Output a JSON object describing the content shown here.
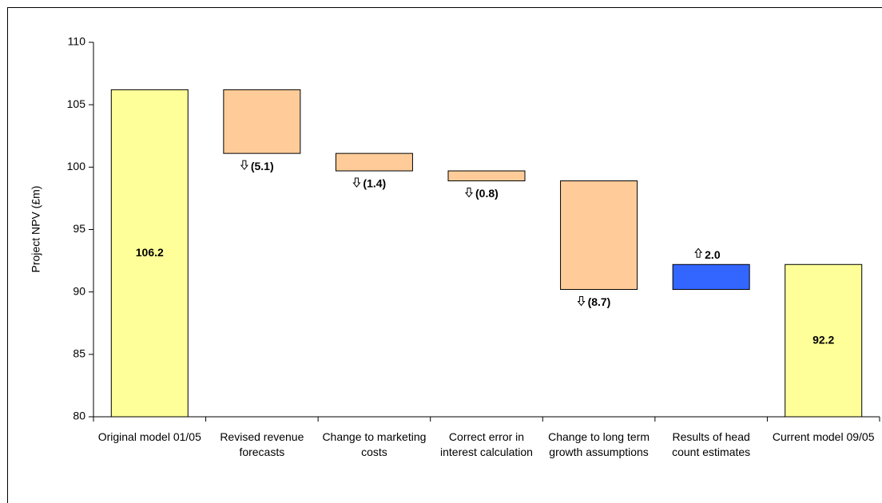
{
  "chart_data": {
    "type": "waterfall",
    "y_label": "Project NPV (£m)",
    "categories": [
      "Original model 01/05",
      "Revised revenue forecasts",
      "Change to marketing costs",
      "Correct error in interest calculation",
      "Change to long term growth assumptions",
      "Results of head count estimates",
      "Current model 09/05"
    ],
    "values": [
      106.2,
      -5.1,
      -1.4,
      -0.8,
      -8.7,
      2.0,
      92.2
    ],
    "value_labels": [
      "106.2",
      "(5.1)",
      "(1.4)",
      "(0.8)",
      "(8.7)",
      "2.0",
      "92.2"
    ],
    "measures": [
      "total",
      "relative",
      "relative",
      "relative",
      "relative",
      "relative",
      "total"
    ],
    "colors": {
      "total": "#ffff99",
      "decrease": "#ffcc99",
      "increase": "#3366ff"
    },
    "ylim": [
      80,
      110
    ],
    "yticks": [
      80,
      85,
      90,
      95,
      100,
      105,
      110
    ],
    "grid": false
  }
}
